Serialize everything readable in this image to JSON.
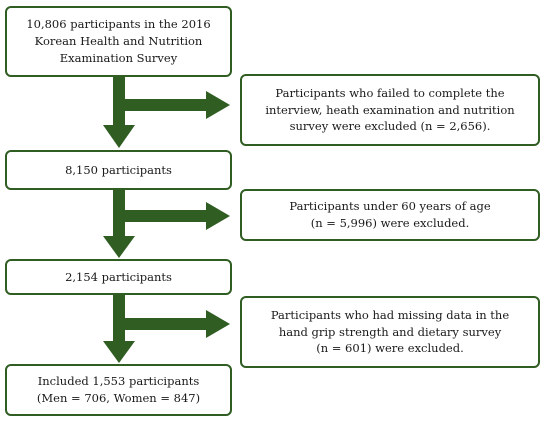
{
  "flowchart": {
    "steps": [
      {
        "lines": [
          "10,806 participants in the 2016",
          "Korean Health and Nutrition",
          "Examination Survey"
        ]
      },
      {
        "lines": [
          "8,150 participants"
        ]
      },
      {
        "lines": [
          "2,154 participants"
        ]
      },
      {
        "lines": [
          "Included 1,553 participants",
          "(Men = 706, Women = 847)"
        ]
      }
    ],
    "exclusions": [
      {
        "lines": [
          "Participants who failed to complete the",
          "interview, heath examination and nutrition",
          "survey were excluded (n = 2,656)."
        ]
      },
      {
        "lines": [
          "Participants under 60 years of age",
          "(n = 5,996) were excluded."
        ]
      },
      {
        "lines": [
          "Participants who had missing data in the",
          "hand grip strength and dietary survey",
          "(n = 601) were excluded."
        ]
      }
    ]
  },
  "colors": {
    "border": "#2f5d22",
    "arrow": "#2f5d22"
  }
}
